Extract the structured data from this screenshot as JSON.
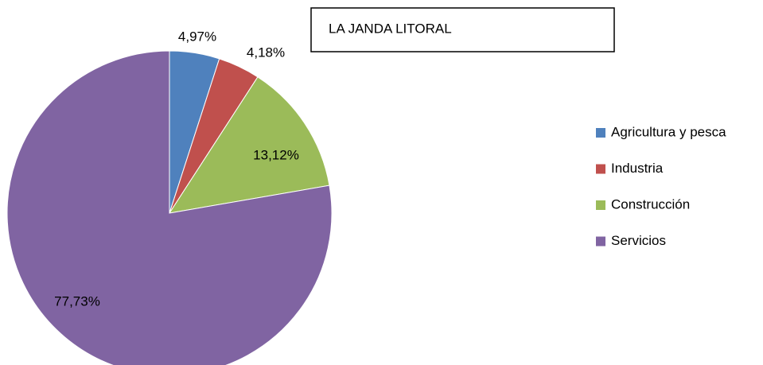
{
  "chart_data": {
    "type": "pie",
    "title": "LA JANDA LITORAL",
    "categories": [
      "Agricultura y pesca",
      "Industria",
      "Construcción",
      "Servicios"
    ],
    "values": [
      4.97,
      4.18,
      13.12,
      77.73
    ],
    "value_labels": [
      "4,97%",
      "4,18%",
      "13,12%",
      "77,73%"
    ],
    "colors": [
      "#4f81bd",
      "#c0504d",
      "#9bbb59",
      "#8064a2"
    ],
    "legend": "right"
  }
}
